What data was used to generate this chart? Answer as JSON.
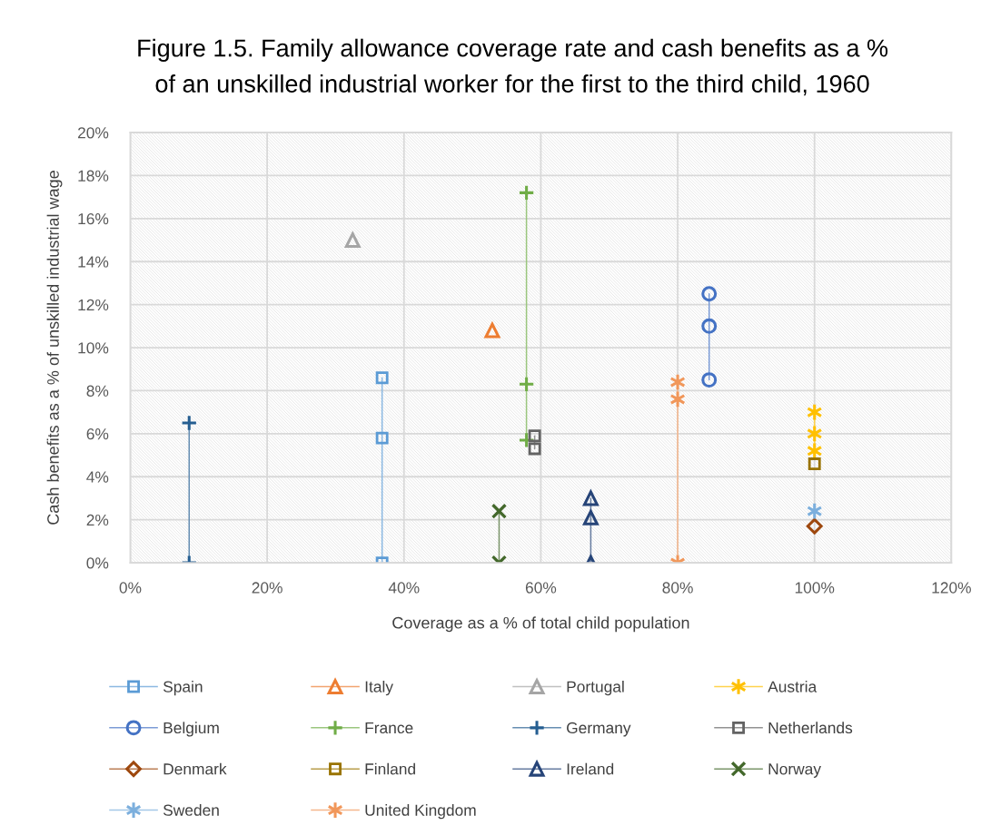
{
  "chart_data": {
    "type": "line",
    "title": "Figure 1.5. Family allowance coverage rate and cash benefits as a % of an unskilled industrial worker for the first to the third child, 1960",
    "xlabel": "Coverage as a % of total child population",
    "ylabel": "Cash benefits as a % of unskilled industrial wage",
    "xlim": [
      0,
      120
    ],
    "xticks": [
      {
        "value": 0,
        "label": "0%"
      },
      {
        "value": 20,
        "label": "20%"
      },
      {
        "value": 40,
        "label": "40%"
      },
      {
        "value": 60,
        "label": "60%"
      },
      {
        "value": 80,
        "label": "80%"
      },
      {
        "value": 100,
        "label": "100%"
      },
      {
        "value": 120,
        "label": "120%"
      }
    ],
    "ylim": [
      0,
      20
    ],
    "yticks": [
      {
        "value": 0,
        "label": "0%"
      },
      {
        "value": 2,
        "label": "2%"
      },
      {
        "value": 4,
        "label": "4%"
      },
      {
        "value": 6,
        "label": "6%"
      },
      {
        "value": 8,
        "label": "8%"
      },
      {
        "value": 10,
        "label": "10%"
      },
      {
        "value": 12,
        "label": "12%"
      },
      {
        "value": 14,
        "label": "14%"
      },
      {
        "value": 16,
        "label": "16%"
      },
      {
        "value": 18,
        "label": "18%"
      },
      {
        "value": 20,
        "label": "20%"
      }
    ],
    "grid": true,
    "legend": "bottom",
    "series": [
      {
        "name": "Spain",
        "color": "#5b9bd5",
        "marker": "square",
        "x": [
          36.8,
          36.8,
          36.8
        ],
        "values": [
          8.6,
          5.8,
          0
        ]
      },
      {
        "name": "Italy",
        "color": "#ed7d31",
        "marker": "triangle",
        "x": [
          52.9
        ],
        "values": [
          10.8
        ]
      },
      {
        "name": "Portugal",
        "color": "#a5a5a5",
        "marker": "triangle",
        "x": [
          32.5
        ],
        "values": [
          15.0
        ]
      },
      {
        "name": "Austria",
        "color": "#ffc000",
        "marker": "cross",
        "x": [
          100,
          100,
          100
        ],
        "values": [
          7.0,
          6.0,
          5.2
        ]
      },
      {
        "name": "Belgium",
        "color": "#4472c4",
        "marker": "circle",
        "x": [
          84.6,
          84.6,
          84.6
        ],
        "values": [
          12.5,
          11.0,
          8.5
        ]
      },
      {
        "name": "France",
        "color": "#70ad47",
        "marker": "plus",
        "x": [
          57.9,
          57.9,
          57.9
        ],
        "values": [
          17.2,
          8.3,
          5.7
        ]
      },
      {
        "name": "Germany",
        "color": "#255e91",
        "marker": "plus",
        "x": [
          8.6,
          8.6
        ],
        "values": [
          6.5,
          0
        ]
      },
      {
        "name": "Netherlands",
        "color": "#636363",
        "marker": "square",
        "x": [
          59.1,
          59.1
        ],
        "values": [
          5.9,
          5.3
        ]
      },
      {
        "name": "Denmark",
        "color": "#9e480e",
        "marker": "diamond",
        "x": [
          100
        ],
        "values": [
          1.7
        ]
      },
      {
        "name": "Finland",
        "color": "#997300",
        "marker": "square",
        "x": [
          100
        ],
        "values": [
          4.6
        ]
      },
      {
        "name": "Ireland",
        "color": "#264478",
        "marker": "triangle",
        "x": [
          67.3,
          67.3,
          67.3
        ],
        "values": [
          3.0,
          2.1,
          0
        ]
      },
      {
        "name": "Norway",
        "color": "#43682b",
        "marker": "x",
        "x": [
          53.9,
          53.9
        ],
        "values": [
          2.4,
          0
        ]
      },
      {
        "name": "Sweden",
        "color": "#7cafdd",
        "marker": "cross",
        "x": [
          100
        ],
        "values": [
          2.4
        ]
      },
      {
        "name": "United Kingdom",
        "color": "#f1975a",
        "marker": "cross",
        "x": [
          80,
          80,
          80
        ],
        "values": [
          8.4,
          7.6,
          0
        ]
      }
    ]
  }
}
